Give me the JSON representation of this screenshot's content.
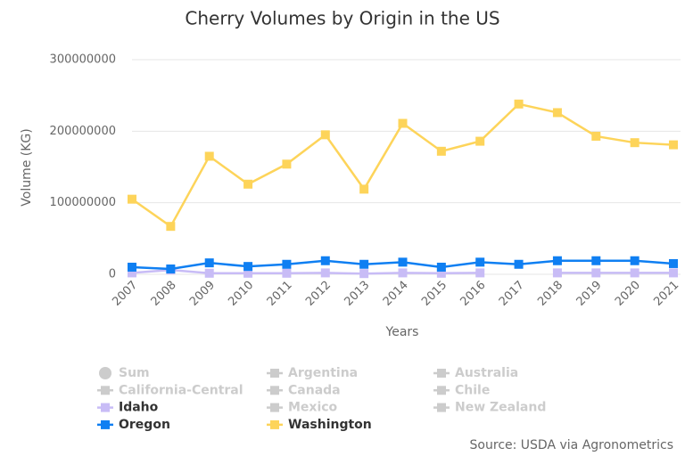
{
  "chart_data": {
    "type": "line",
    "title": "Cherry Volumes by Origin in the US",
    "x_label": "Years",
    "y_label": "Volume (KG)",
    "source": "Source: USDA via Agronometrics",
    "categories": [
      "2007",
      "2008",
      "2009",
      "2010",
      "2011",
      "2012",
      "2013",
      "2014",
      "2015",
      "2016",
      "2017",
      "2018",
      "2019",
      "2020",
      "2021"
    ],
    "ylim": [
      0,
      300000000
    ],
    "yticks": [
      0,
      100000000,
      200000000,
      300000000
    ],
    "grid": true,
    "legend": "bottom",
    "series": [
      {
        "name": "Sum",
        "color": "#cccccc",
        "visible": false,
        "symbol": "circle"
      },
      {
        "name": "Argentina",
        "color": "#cccccc",
        "visible": false,
        "symbol": "square"
      },
      {
        "name": "Australia",
        "color": "#cccccc",
        "visible": false,
        "symbol": "square"
      },
      {
        "name": "California-Central",
        "color": "#cccccc",
        "visible": false,
        "symbol": "square"
      },
      {
        "name": "Canada",
        "color": "#cccccc",
        "visible": false,
        "symbol": "square"
      },
      {
        "name": "Chile",
        "color": "#cccccc",
        "visible": false,
        "symbol": "square"
      },
      {
        "name": "Idaho",
        "color": "#c8bcf6",
        "visible": true,
        "symbol": "square",
        "values": [
          2000000,
          6000000,
          1500000,
          1500000,
          1500000,
          2000000,
          1000000,
          2000000,
          1500000,
          2000000,
          null,
          2000000,
          2000000,
          2000000,
          2000000
        ]
      },
      {
        "name": "Mexico",
        "color": "#cccccc",
        "visible": false,
        "symbol": "square"
      },
      {
        "name": "New Zealand",
        "color": "#cccccc",
        "visible": false,
        "symbol": "square"
      },
      {
        "name": "Oregon",
        "color": "#0f7ff2",
        "visible": true,
        "symbol": "square",
        "values": [
          10000000,
          7500000,
          16000000,
          11000000,
          14000000,
          19000000,
          14000000,
          17000000,
          10000000,
          17000000,
          14000000,
          19000000,
          19000000,
          19000000,
          15000000
        ]
      },
      {
        "name": "Washington",
        "color": "#fdd45a",
        "visible": true,
        "symbol": "square",
        "values": [
          105000000,
          67000000,
          165000000,
          126000000,
          154000000,
          195000000,
          119000000,
          211000000,
          172000000,
          186000000,
          238000000,
          226000000,
          193000000,
          184000000,
          181000000
        ]
      }
    ]
  }
}
